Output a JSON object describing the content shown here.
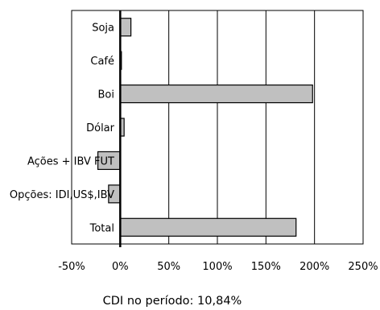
{
  "chart_data": {
    "type": "bar",
    "orientation": "horizontal",
    "categories": [
      "Soja",
      "Café",
      "Boi",
      "Dólar",
      "Ações + IBV FUT",
      "Opções: IDI,US$,IBV",
      "Total"
    ],
    "values": [
      11,
      1,
      198,
      4,
      -23,
      -12,
      181
    ],
    "value_unit": "%",
    "xlim": [
      -50,
      250
    ],
    "x_ticks": [
      -50,
      0,
      50,
      100,
      150,
      200,
      250
    ],
    "x_tick_labels": [
      "-50%",
      "0%",
      "50%",
      "100%",
      "150%",
      "200%",
      "250%"
    ],
    "title": "",
    "xlabel": "",
    "ylabel": "",
    "grid": "vertical",
    "legend": "none",
    "bar_color": "#c0c0c0",
    "caption": "CDI no período: 10,84%"
  }
}
